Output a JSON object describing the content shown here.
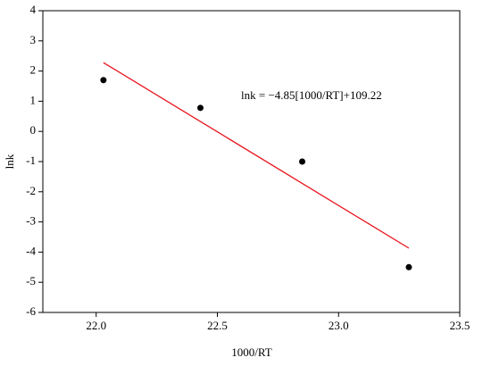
{
  "chart_data": {
    "type": "scatter",
    "x_label": "1000/RT",
    "y_label": "lnk",
    "x": [
      22.03,
      22.43,
      22.85,
      23.29
    ],
    "values": [
      1.7,
      0.78,
      -1.0,
      -4.5
    ],
    "color": "#000000",
    "fit": {
      "x": [
        22.03,
        23.29
      ],
      "y": [
        2.28,
        -3.87
      ],
      "color": "#e8141c"
    },
    "annotation": "lnk = −4.85[1000/RT]+109.22",
    "xlim": [
      21.78,
      23.5
    ],
    "xticks": [
      {
        "value": 22,
        "label": "22.0"
      },
      22.5,
      {
        "value": 23,
        "label": "23.0"
      },
      23.5
    ],
    "ylim": [
      -6,
      4
    ],
    "yticks": [
      -6,
      -5,
      -4,
      -3,
      -2,
      -1,
      0,
      1,
      2,
      3,
      4
    ]
  }
}
